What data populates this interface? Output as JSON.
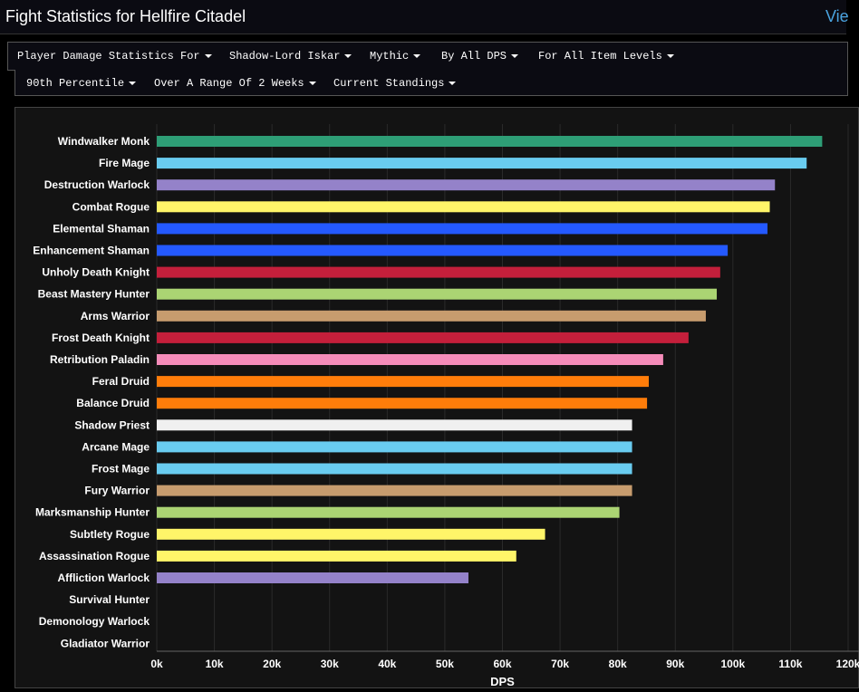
{
  "header": {
    "title": "Fight Statistics for Hellfire Citadel",
    "view_link": "Vie"
  },
  "filters": {
    "row1": [
      "Player Damage Statistics For",
      "Shadow-Lord Iskar",
      "Mythic",
      "By All DPS",
      "For All Item Levels"
    ],
    "row2": [
      "90th Percentile",
      "Over A Range Of 2 Weeks",
      "Current Standings"
    ]
  },
  "chart_data": {
    "type": "bar",
    "orientation": "horizontal",
    "categories": [
      "Windwalker Monk",
      "Fire Mage",
      "Destruction Warlock",
      "Combat Rogue",
      "Elemental Shaman",
      "Enhancement Shaman",
      "Unholy Death Knight",
      "Beast Mastery Hunter",
      "Arms Warrior",
      "Frost Death Knight",
      "Retribution Paladin",
      "Feral Druid",
      "Balance Druid",
      "Shadow Priest",
      "Arcane Mage",
      "Frost Mage",
      "Fury Warrior",
      "Marksmanship Hunter",
      "Subtlety Rogue",
      "Assassination Rogue",
      "Affliction Warlock",
      "Survival Hunter",
      "Demonology Warlock",
      "Gladiator Warrior"
    ],
    "values": [
      115500,
      112800,
      107300,
      106400,
      106000,
      99100,
      97800,
      97200,
      95300,
      92300,
      87900,
      85400,
      85100,
      82500,
      82500,
      82500,
      82500,
      80300,
      67400,
      62400,
      54100,
      0,
      0,
      0
    ],
    "colors": [
      "#2e9e76",
      "#69ccf0",
      "#9482c9",
      "#fff569",
      "#2459ff",
      "#2459ff",
      "#c41f3b",
      "#abd473",
      "#c79c6e",
      "#c41f3b",
      "#f58cba",
      "#ff7d0a",
      "#ff7d0a",
      "#f0f0f0",
      "#69ccf0",
      "#69ccf0",
      "#c79c6e",
      "#abd473",
      "#fff569",
      "#fff569",
      "#9482c9",
      "#abd473",
      "#9482c9",
      "#c79c6e"
    ],
    "xlabel": "DPS",
    "xlim": [
      0,
      120000
    ],
    "xticks": [
      "0k",
      "10k",
      "20k",
      "30k",
      "40k",
      "50k",
      "60k",
      "70k",
      "80k",
      "90k",
      "100k",
      "110k",
      "120k"
    ],
    "grid": true
  }
}
